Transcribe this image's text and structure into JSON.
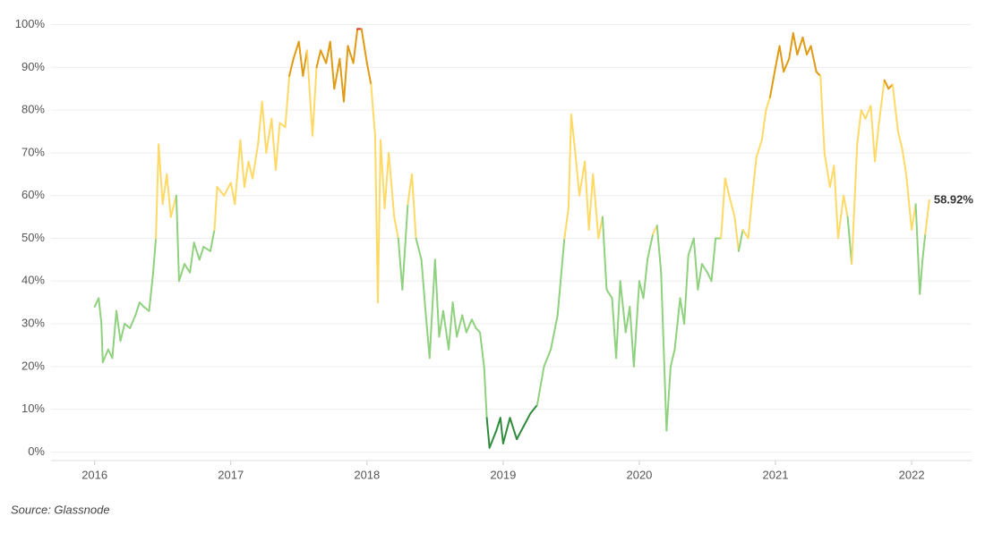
{
  "chart_data": {
    "type": "line",
    "x": [
      2016.0,
      2016.03,
      2016.05,
      2016.06,
      2016.1,
      2016.13,
      2016.16,
      2016.19,
      2016.22,
      2016.26,
      2016.3,
      2016.33,
      2016.36,
      2016.4,
      2016.43,
      2016.45,
      2016.47,
      2016.5,
      2016.53,
      2016.56,
      2016.6,
      2016.62,
      2016.66,
      2016.7,
      2016.73,
      2016.77,
      2016.8,
      2016.85,
      2016.88,
      2016.9,
      2016.95,
      2017.0,
      2017.03,
      2017.07,
      2017.1,
      2017.13,
      2017.16,
      2017.2,
      2017.23,
      2017.26,
      2017.3,
      2017.33,
      2017.36,
      2017.4,
      2017.43,
      2017.46,
      2017.5,
      2017.53,
      2017.56,
      2017.6,
      2017.63,
      2017.66,
      2017.7,
      2017.73,
      2017.76,
      2017.8,
      2017.83,
      2017.86,
      2017.9,
      2017.93,
      2017.96,
      2018.0,
      2018.03,
      2018.06,
      2018.08,
      2018.1,
      2018.13,
      2018.16,
      2018.2,
      2018.23,
      2018.26,
      2018.3,
      2018.33,
      2018.36,
      2018.4,
      2018.43,
      2018.46,
      2018.5,
      2018.53,
      2018.56,
      2018.6,
      2018.63,
      2018.66,
      2018.7,
      2018.73,
      2018.77,
      2018.8,
      2018.83,
      2018.86,
      2018.88,
      2018.9,
      2018.95,
      2018.98,
      2019.0,
      2019.05,
      2019.1,
      2019.15,
      2019.2,
      2019.25,
      2019.3,
      2019.35,
      2019.4,
      2019.45,
      2019.48,
      2019.5,
      2019.53,
      2019.56,
      2019.6,
      2019.63,
      2019.66,
      2019.7,
      2019.73,
      2019.76,
      2019.8,
      2019.83,
      2019.86,
      2019.9,
      2019.93,
      2019.96,
      2020.0,
      2020.03,
      2020.06,
      2020.1,
      2020.13,
      2020.16,
      2020.2,
      2020.23,
      2020.26,
      2020.3,
      2020.33,
      2020.36,
      2020.4,
      2020.43,
      2020.46,
      2020.5,
      2020.53,
      2020.56,
      2020.6,
      2020.63,
      2020.66,
      2020.7,
      2020.73,
      2020.76,
      2020.8,
      2020.83,
      2020.86,
      2020.9,
      2020.93,
      2020.96,
      2021.0,
      2021.03,
      2021.06,
      2021.1,
      2021.13,
      2021.16,
      2021.2,
      2021.23,
      2021.26,
      2021.3,
      2021.33,
      2021.36,
      2021.4,
      2021.43,
      2021.46,
      2021.5,
      2021.53,
      2021.56,
      2021.6,
      2021.63,
      2021.66,
      2021.7,
      2021.73,
      2021.76,
      2021.8,
      2021.83,
      2021.86,
      2021.9,
      2021.93,
      2021.96,
      2022.0,
      2022.03,
      2022.06,
      2022.08,
      2022.1,
      2022.13
    ],
    "values": [
      34,
      36,
      30,
      21,
      24,
      22,
      33,
      26,
      30,
      29,
      32,
      35,
      34,
      33,
      42,
      50,
      72,
      58,
      65,
      55,
      60,
      40,
      44,
      42,
      49,
      45,
      48,
      47,
      52,
      62,
      60,
      63,
      58,
      73,
      62,
      68,
      64,
      72,
      82,
      70,
      78,
      66,
      77,
      76,
      88,
      92,
      96,
      88,
      94,
      74,
      90,
      94,
      91,
      96,
      85,
      92,
      82,
      95,
      91,
      99,
      99,
      91,
      86,
      74,
      35,
      73,
      57,
      70,
      55,
      50,
      38,
      58,
      65,
      50,
      45,
      33,
      22,
      45,
      27,
      33,
      24,
      35,
      27,
      32,
      28,
      31,
      29,
      28,
      20,
      8,
      1,
      5,
      8,
      2,
      8,
      3,
      6,
      9,
      11,
      20,
      24,
      32,
      50,
      57,
      79,
      70,
      60,
      68,
      52,
      65,
      50,
      55,
      38,
      36,
      22,
      40,
      28,
      34,
      20,
      40,
      36,
      45,
      51,
      53,
      42,
      5,
      20,
      24,
      36,
      30,
      46,
      50,
      38,
      44,
      42,
      40,
      50,
      50,
      64,
      60,
      55,
      47,
      52,
      50,
      60,
      69,
      73,
      80,
      83,
      90,
      95,
      89,
      92,
      98,
      93,
      97,
      93,
      95,
      89,
      88,
      70,
      62,
      67,
      50,
      60,
      55,
      44,
      72,
      80,
      78,
      81,
      68,
      77,
      87,
      85,
      86,
      75,
      71,
      65,
      52,
      58,
      37,
      45,
      51,
      58.92
    ],
    "last_value_label": "58.92%",
    "color_scale": [
      {
        "max": 10,
        "color": "#2e8b3a"
      },
      {
        "max": 50,
        "color": "#8fd17e"
      },
      {
        "max": 85,
        "color": "#ffd966"
      },
      {
        "max": 97,
        "color": "#e09a14"
      },
      {
        "max": 100,
        "color": "#d93030"
      }
    ],
    "xlim": [
      2015.68,
      2022.44
    ],
    "xticks": [
      2016,
      2017,
      2018,
      2019,
      2020,
      2021,
      2022
    ],
    "ylim": [
      -2,
      102
    ],
    "yticks": [
      {
        "value": 0,
        "label": "0%"
      },
      {
        "value": 10,
        "label": "10%"
      },
      {
        "value": 20,
        "label": "20%"
      },
      {
        "value": 30,
        "label": "30%"
      },
      {
        "value": 40,
        "label": "40%"
      },
      {
        "value": 50,
        "label": "50%"
      },
      {
        "value": 60,
        "label": "60%"
      },
      {
        "value": 70,
        "label": "70%"
      },
      {
        "value": 80,
        "label": "80%"
      },
      {
        "value": 90,
        "label": "90%"
      },
      {
        "value": 100,
        "label": "100%"
      }
    ],
    "grid": true,
    "source": "Source: Glassnode"
  }
}
